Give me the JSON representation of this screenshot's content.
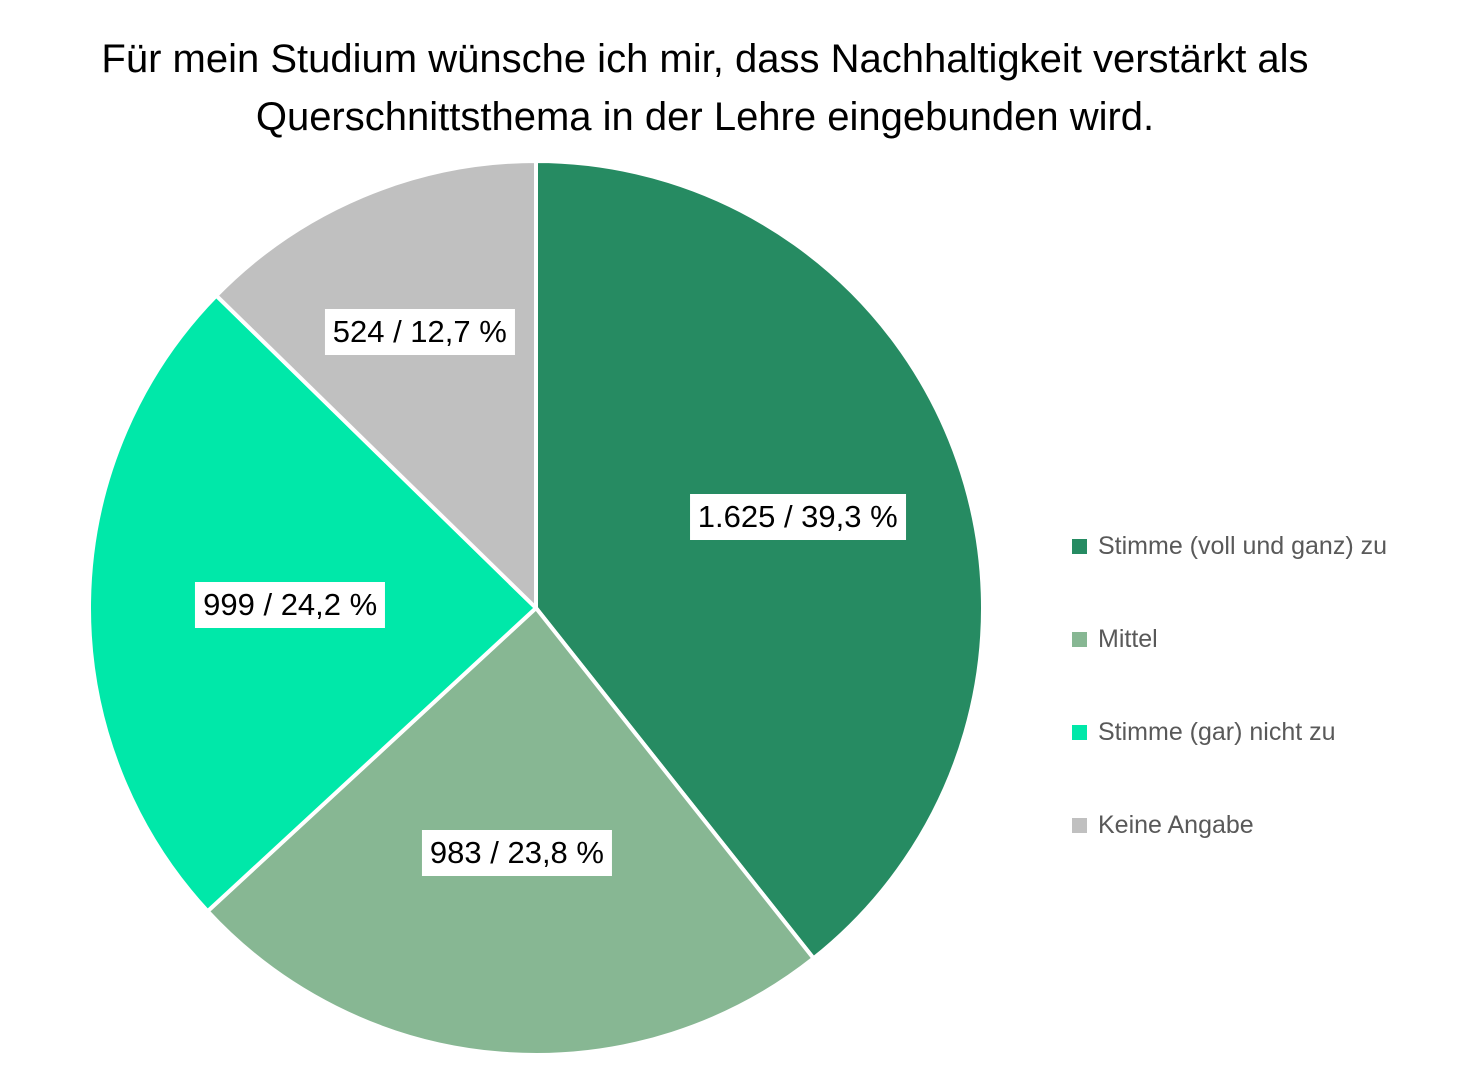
{
  "chart_data": {
    "type": "pie",
    "title": [
      "Für mein Studium wünsche ich mir, dass Nachhaltigkeit verstärkt als",
      "Querschnittsthema in der Lehre eingebunden wird."
    ],
    "slices": [
      {
        "name": "Stimme (voll und ganz) zu",
        "count": 1625,
        "percent": 39.3,
        "label": "1.625 / 39,3 %",
        "color": "#268B62"
      },
      {
        "name": "Mittel",
        "count": 983,
        "percent": 23.8,
        "label": "983 / 23,8 %",
        "color": "#87B793"
      },
      {
        "name": "Stimme (gar) nicht zu",
        "count": 999,
        "percent": 24.2,
        "label": "999 / 24,2 %",
        "color": "#00E8A9"
      },
      {
        "name": "Keine Angabe",
        "count": 524,
        "percent": 12.7,
        "label": "524 / 12,7 %",
        "color": "#C0C0C0"
      }
    ],
    "legend_position": "right"
  }
}
